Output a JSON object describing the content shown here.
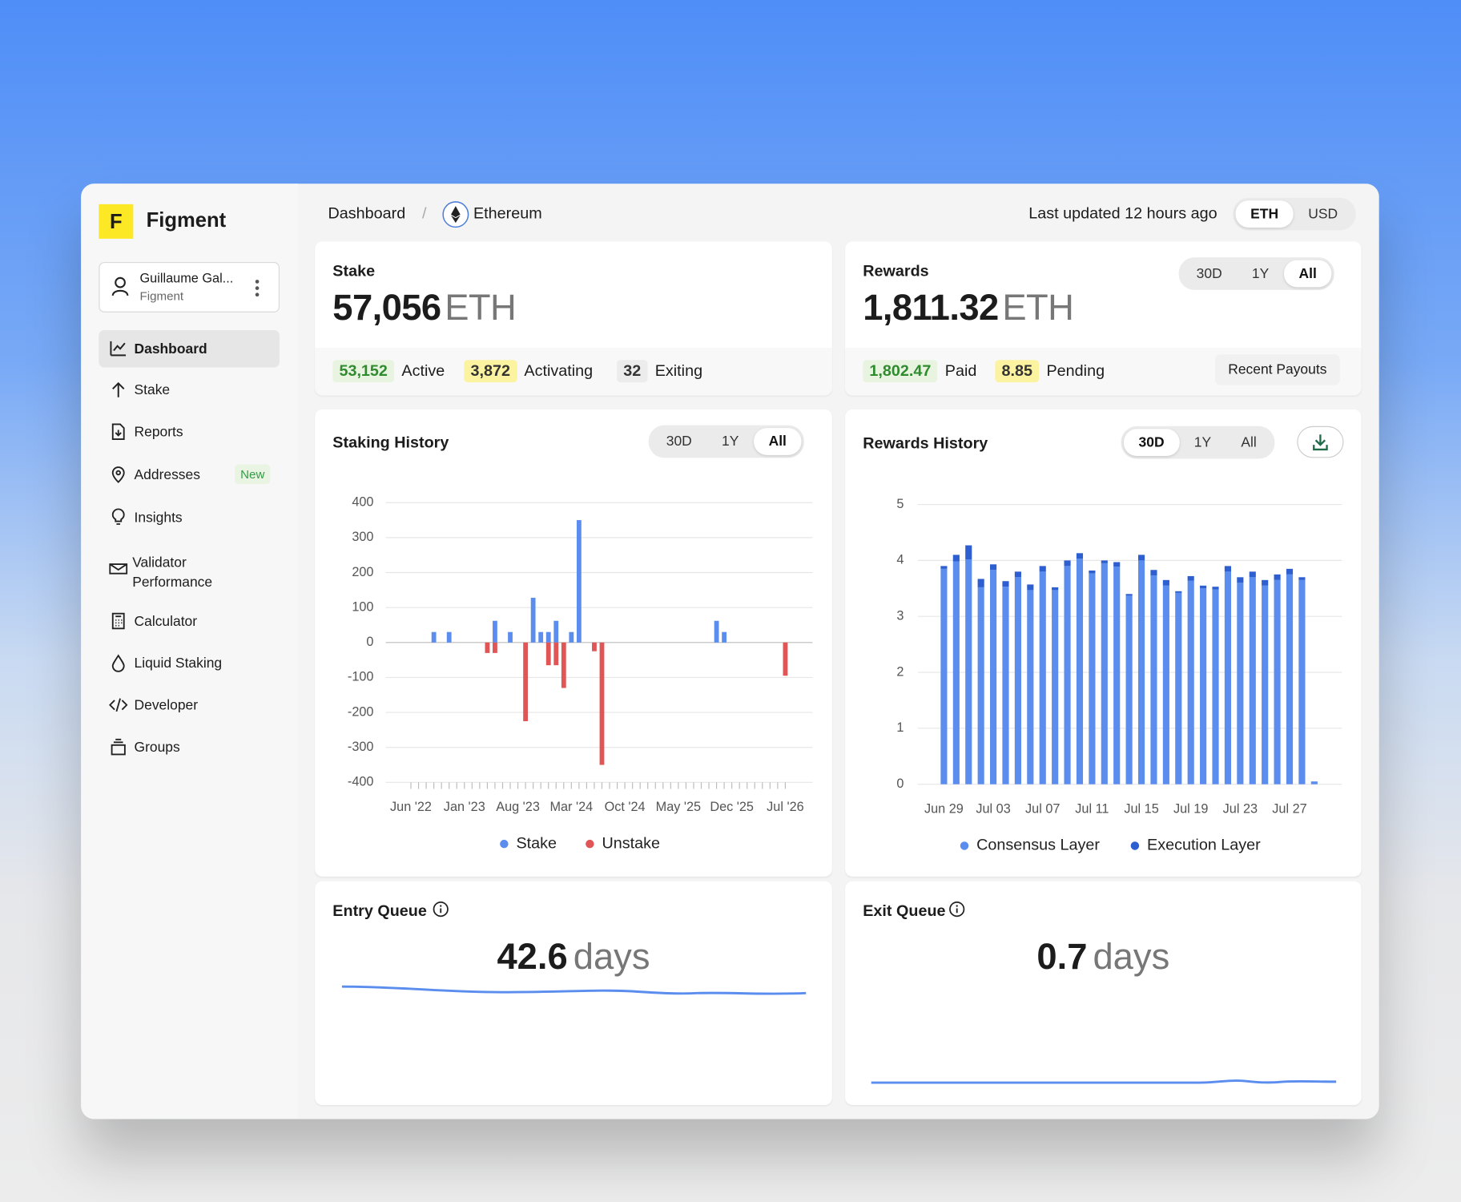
{
  "sidebar": {
    "brand_letter": "F",
    "brand": "Figment",
    "user": {
      "name": "Guillaume Gal...",
      "org": "Figment"
    },
    "nav": [
      "Dashboard",
      "Stake",
      "Reports",
      "Addresses",
      "Insights",
      "Validator Performance",
      "Calculator",
      "Liquid Staking",
      "Developer",
      "Groups"
    ],
    "badge": "New"
  },
  "header": {
    "breadcrumb": "Dashboard",
    "separator": "/",
    "network": "Ethereum",
    "updated": "Last updated 12 hours ago",
    "currencies": [
      "ETH",
      "USD"
    ]
  },
  "stake": {
    "title": "Stake",
    "amount": "57,056",
    "unit": "ETH",
    "stats": [
      {
        "value": "53,152",
        "label": "Active"
      },
      {
        "value": "3,872",
        "label": "Activating"
      },
      {
        "value": "32",
        "label": "Exiting"
      }
    ]
  },
  "rewards": {
    "title": "Rewards",
    "periods": [
      "30D",
      "1Y",
      "All"
    ],
    "amount": "1,811.32",
    "unit": "ETH",
    "stats": [
      {
        "value": "1,802.47",
        "label": "Paid"
      },
      {
        "value": "8.85",
        "label": "Pending"
      }
    ],
    "button": "Recent Payouts"
  },
  "chart_data": [
    {
      "type": "bar",
      "title": "Staking History",
      "periods": [
        "30D",
        "1Y",
        "All"
      ],
      "stacked": true,
      "categories": [
        "Jun '22",
        null,
        null,
        null,
        null,
        null,
        null,
        "Jan '23",
        null,
        null,
        null,
        null,
        null,
        null,
        "Aug '23",
        null,
        null,
        null,
        null,
        null,
        null,
        "Mar '24",
        null,
        null,
        null,
        null,
        null,
        null,
        "Oct '24",
        null,
        null,
        null,
        null,
        null,
        null,
        "May '25",
        null,
        null,
        null,
        null,
        null,
        null,
        "Dec '25",
        null,
        null,
        null,
        null,
        null,
        null,
        "Jul '26"
      ],
      "series": [
        {
          "name": "Stake",
          "color": "#5b8def",
          "values": [
            null,
            null,
            null,
            30,
            null,
            30,
            null,
            null,
            null,
            null,
            null,
            62,
            null,
            30,
            null,
            null,
            128,
            30,
            30,
            62,
            null,
            30,
            350,
            null,
            null,
            null,
            null,
            null,
            null,
            null,
            null,
            null,
            null,
            null,
            null,
            null,
            null,
            null,
            null,
            null,
            62,
            30,
            null,
            null,
            null,
            null,
            null,
            null,
            null,
            null
          ]
        },
        {
          "name": "Unstake",
          "color": "#e05555",
          "values": [
            null,
            null,
            null,
            null,
            null,
            null,
            null,
            null,
            null,
            null,
            -30,
            -30,
            null,
            null,
            null,
            -225,
            null,
            null,
            -65,
            -65,
            -130,
            null,
            null,
            null,
            -25,
            -350,
            null,
            null,
            null,
            null,
            null,
            null,
            null,
            null,
            null,
            null,
            null,
            null,
            null,
            null,
            null,
            null,
            null,
            null,
            null,
            null,
            null,
            null,
            null,
            -95
          ]
        }
      ],
      "ylim": [
        -400,
        400
      ],
      "yticks": [
        -400,
        -300,
        -200,
        -100,
        0,
        100,
        200,
        300,
        400
      ],
      "grid": true
    },
    {
      "type": "bar",
      "title": "Rewards History",
      "periods": [
        "30D",
        "1Y",
        "All"
      ],
      "stacked": true,
      "categories": [
        "Jun 29",
        null,
        null,
        null,
        "Jul 03",
        null,
        null,
        null,
        "Jul 07",
        null,
        null,
        null,
        "Jul 11",
        null,
        null,
        null,
        "Jul 15",
        null,
        null,
        null,
        "Jul 19",
        null,
        null,
        null,
        "Jul 23",
        null,
        null,
        null,
        "Jul 27",
        null,
        null
      ],
      "series": [
        {
          "name": "Consensus Layer",
          "color": "#5b8def",
          "values": [
            3.85,
            3.98,
            4.02,
            3.52,
            3.83,
            3.53,
            3.7,
            3.47,
            3.8,
            3.47,
            3.9,
            4.03,
            3.77,
            3.95,
            3.89,
            3.37,
            4.0,
            3.73,
            3.55,
            3.42,
            3.64,
            3.5,
            3.48,
            3.8,
            3.6,
            3.7,
            3.55,
            3.65,
            3.75,
            3.65,
            0.05
          ]
        },
        {
          "name": "Execution Layer",
          "color": "#2d5fd0",
          "values": [
            0.05,
            0.12,
            0.25,
            0.15,
            0.1,
            0.1,
            0.1,
            0.1,
            0.1,
            0.05,
            0.1,
            0.1,
            0.05,
            0.05,
            0.08,
            0.03,
            0.1,
            0.1,
            0.1,
            0.03,
            0.08,
            0.05,
            0.05,
            0.1,
            0.1,
            0.1,
            0.1,
            0.1,
            0.1,
            0.05,
            null
          ]
        }
      ],
      "ylim": [
        0,
        5
      ],
      "yticks": [
        0,
        1,
        2,
        3,
        4,
        5
      ],
      "grid": true
    }
  ],
  "entry_queue": {
    "title": "Entry Queue",
    "value": "42.6",
    "unit": "days"
  },
  "exit_queue": {
    "title": "Exit Queue",
    "value": "0.7",
    "unit": "days"
  }
}
